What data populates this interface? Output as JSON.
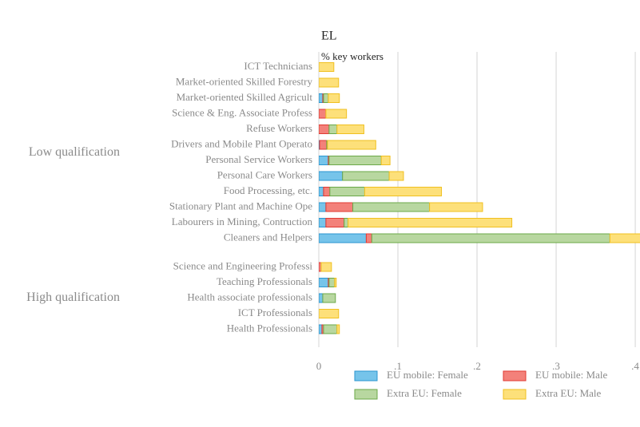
{
  "chart_data": {
    "type": "stacked_barh",
    "title": "EL",
    "subtitle": "% key workers",
    "categories": [
      "ICT Technicians",
      "Market-oriented Skilled Forestry",
      "Market-oriented Skilled Agricult",
      "Science & Eng. Associate Profess",
      "Refuse Workers",
      "Drivers and Mobile Plant Operato",
      "Personal Service Workers",
      "Personal Care Workers",
      "Food Processing, etc.",
      "Stationary Plant and Machine Ope",
      "Labourers in Mining, Contruction",
      "Cleaners and Helpers",
      "Science and Engineering Professi",
      "Teaching Professionals",
      "Health associate professionals",
      "ICT Professionals",
      "Health Professionals"
    ],
    "category_groups": [
      "Low qualification",
      "Low qualification",
      "Low qualification",
      "Low qualification",
      "Low qualification",
      "Low qualification",
      "Low qualification",
      "Low qualification",
      "Low qualification",
      "Low qualification",
      "Low qualification",
      "Low qualification",
      "High qualification",
      "High qualification",
      "High qualification",
      "High qualification",
      "High qualification"
    ],
    "series": [
      {
        "name": "EU mobile: Female",
        "color": "#76c4ea",
        "edge": "#2b96d0",
        "values": [
          0,
          0,
          0.005,
          0,
          0,
          0.001,
          0.012,
          0.03,
          0.006,
          0.009,
          0.009,
          0.06,
          0,
          0.012,
          0.005,
          0,
          0.004
        ]
      },
      {
        "name": "EU mobile: Male",
        "color": "#f3817a",
        "edge": "#e03a33",
        "values": [
          0,
          0,
          0.001,
          0.009,
          0.013,
          0.009,
          0.001,
          0,
          0.008,
          0.034,
          0.023,
          0.007,
          0.003,
          0.001,
          0,
          0,
          0.002
        ]
      },
      {
        "name": "Extra EU: Female",
        "color": "#b8d7a0",
        "edge": "#6ba848",
        "values": [
          0,
          0,
          0.006,
          0,
          0.01,
          0.001,
          0.066,
          0.059,
          0.044,
          0.097,
          0.005,
          0.301,
          0,
          0.007,
          0.016,
          0,
          0.017
        ]
      },
      {
        "name": "Extra EU: Male",
        "color": "#fde07a",
        "edge": "#f0c020",
        "values": [
          0.019,
          0.025,
          0.014,
          0.026,
          0.034,
          0.061,
          0.011,
          0.018,
          0.097,
          0.067,
          0.207,
          0.045,
          0.013,
          0.002,
          0,
          0.025,
          0.003
        ]
      }
    ],
    "xlim": [
      0,
      0.406
    ],
    "xticks": [
      0,
      {
        "value": 0.1,
        "label": ".1"
      },
      {
        "value": 0.2,
        "label": ".2"
      },
      {
        "value": 0.3,
        "label": ".3"
      },
      {
        "value": 0.4,
        "label": ".4"
      }
    ],
    "grid": true,
    "legend": "bottom"
  }
}
